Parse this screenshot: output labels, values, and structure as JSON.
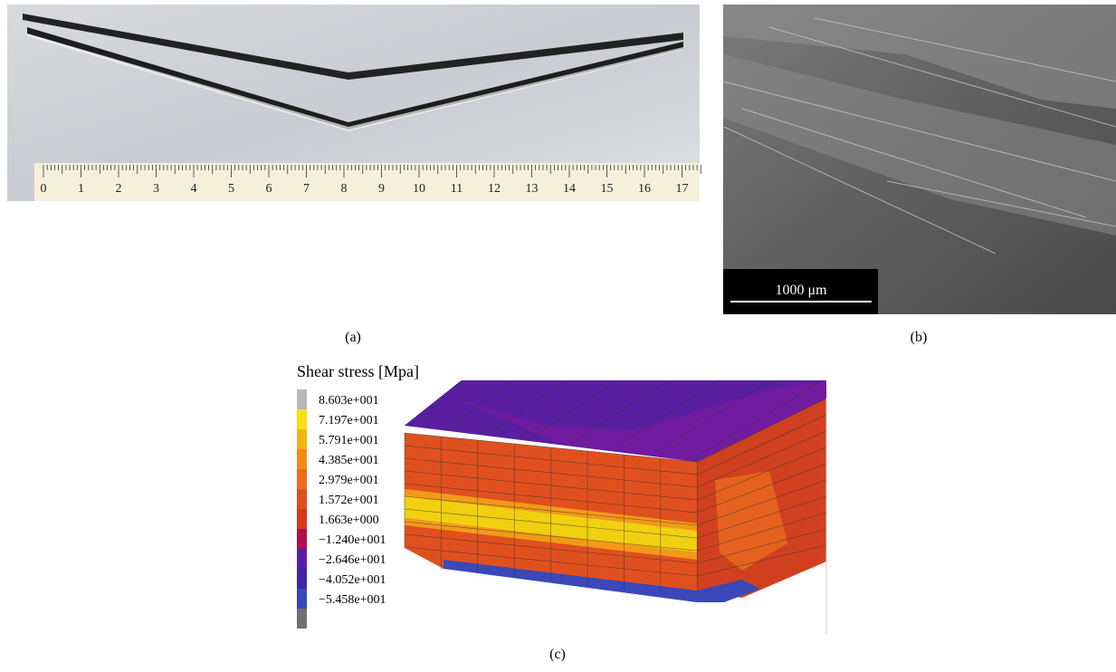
{
  "panel_a": {
    "label": "(a)",
    "ruler_numbers": [
      "0",
      "1",
      "2",
      "3",
      "4",
      "5",
      "6",
      "7",
      "8",
      "9",
      "10",
      "11",
      "12",
      "13",
      "14",
      "15",
      "16",
      "17"
    ]
  },
  "panel_b": {
    "label": "(b)",
    "scale_bar": "1000 μm"
  },
  "panel_c": {
    "label": "(c)",
    "legend_title": "Shear stress [Mpa]",
    "legend_labels": [
      "8.603e+001",
      "7.197e+001",
      "5.791e+001",
      "4.385e+001",
      "2.979e+001",
      "1.572e+001",
      "1.663e+000",
      "−1.240e+001",
      "−2.646e+001",
      "−4.052e+001",
      "−5.458e+001"
    ]
  }
}
